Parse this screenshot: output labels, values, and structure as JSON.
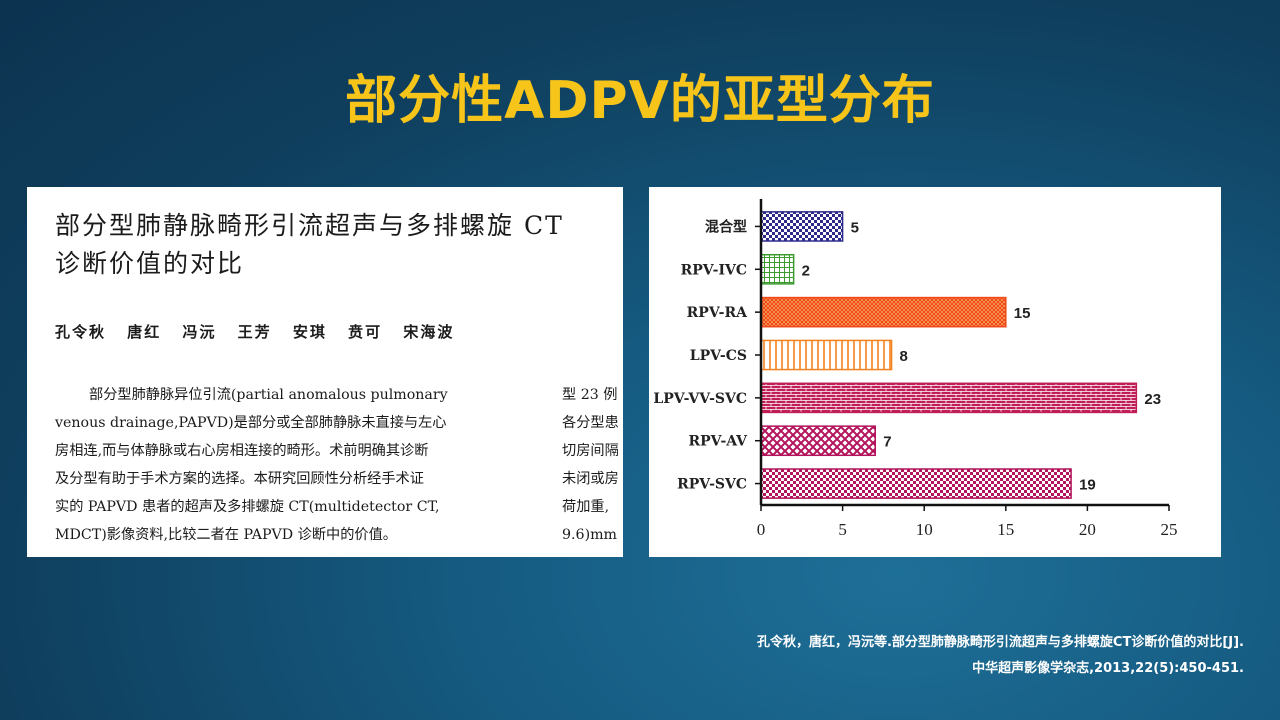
{
  "slide": {
    "title": "部分性ADPV的亚型分布",
    "citation_line1": "孔令秋，唐红，冯沅等.部分型肺静脉畸形引流超声与多排螺旋CT诊断价值的对比[J].",
    "citation_line2": "中华超声影像学杂志,2013,22(5):450-451."
  },
  "paper": {
    "title_line1": "部分型肺静脉畸形引流超声与多排螺旋 CT",
    "title_line2": "诊断价值的对比",
    "authors": "孔令秋 唐红 冯沅 王芳 安琪 贲可 宋海波",
    "abstract_lines": [
      "部分型肺静脉异位引流(partial anomalous pulmonary",
      "venous drainage,PAPVD)是部分或全部肺静脉未直接与左心",
      "房相连,而与体静脉或右心房相连接的畸形。术前明确其诊断",
      "及分型有助于手术方案的选择。本研究回顾性分析经手术证",
      "实的 PAPVD 患者的超声及多排螺旋 CT(multidetector CT,",
      "MDCT)影像资料,比较二者在 PAPVD 诊断中的价值。"
    ],
    "right_col_lines": [
      "型 23 例",
      "各分型患",
      "切房间隔",
      "未闭或房",
      "荷加重,",
      "9.6)mm"
    ]
  },
  "chart_data": {
    "type": "bar",
    "orientation": "horizontal",
    "categories": [
      "混合型",
      "RPV-IVC",
      "RPV-RA",
      "LPV-CS",
      "LPV-VV-SVC",
      "RPV-AV",
      "RPV-SVC"
    ],
    "values": [
      5,
      2,
      15,
      8,
      23,
      7,
      19
    ],
    "xlim": [
      0,
      25
    ],
    "xticks": [
      0,
      5,
      10,
      15,
      20,
      25
    ],
    "grid": false,
    "legend": "none",
    "bar_styles": [
      {
        "color": "#2e2a8c",
        "pattern": "checker"
      },
      {
        "color": "#3c9a2e",
        "pattern": "grid"
      },
      {
        "color": "#f04a1a",
        "pattern": "dots"
      },
      {
        "color": "#f58220",
        "pattern": "vlines"
      },
      {
        "color": "#c01e56",
        "pattern": "bricks"
      },
      {
        "color": "#b2135a",
        "pattern": "crosshatch"
      },
      {
        "color": "#b2135a",
        "pattern": "checker"
      }
    ]
  }
}
